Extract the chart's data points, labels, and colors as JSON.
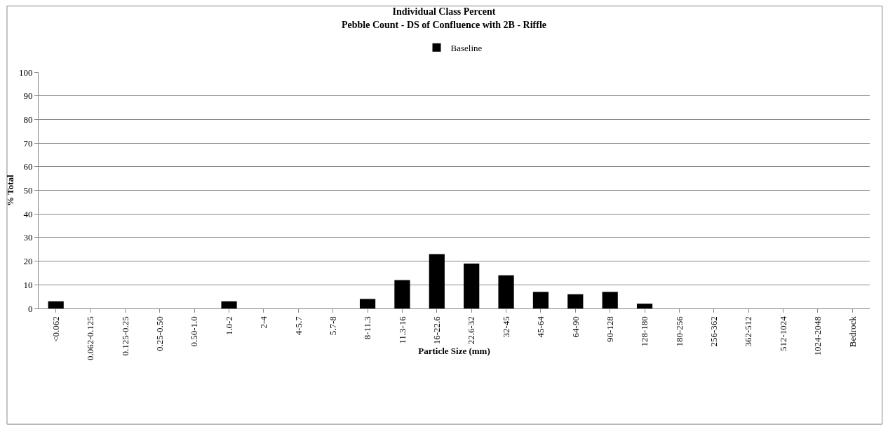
{
  "chart_data": {
    "type": "bar",
    "title": "Individual Class Percent",
    "subtitle": "Pebble Count - DS of Confluence with 2B - Riffle",
    "xlabel": "Particle Size (mm)",
    "ylabel": "% Total",
    "categories": [
      "<0.062",
      "0.062-0.125",
      "0.125-0.25",
      "0.25-0.50",
      "0.50-1.0",
      "1.0-2",
      "2-4",
      "4-5.7",
      "5.7-8",
      "8-11.3",
      "11.3-16",
      "16-22.6",
      "22.6-32",
      "32-45",
      "45-64",
      "64-90",
      "90-128",
      "128-180",
      "180-256",
      "256-362",
      "362-512",
      "512-1024",
      "1024-2048",
      "Bedrock"
    ],
    "series": [
      {
        "name": "Baseline",
        "color": "#000000",
        "values": [
          3,
          0,
          0,
          0,
          0,
          3,
          0,
          0,
          0,
          4,
          12,
          23,
          19,
          14,
          7,
          6,
          7,
          2,
          0,
          0,
          0,
          0,
          0,
          0
        ]
      }
    ],
    "ylim": [
      0,
      100
    ],
    "yticks": [
      0,
      10,
      20,
      30,
      40,
      50,
      60,
      70,
      80,
      90,
      100
    ],
    "grid": "y",
    "legend": "top"
  }
}
